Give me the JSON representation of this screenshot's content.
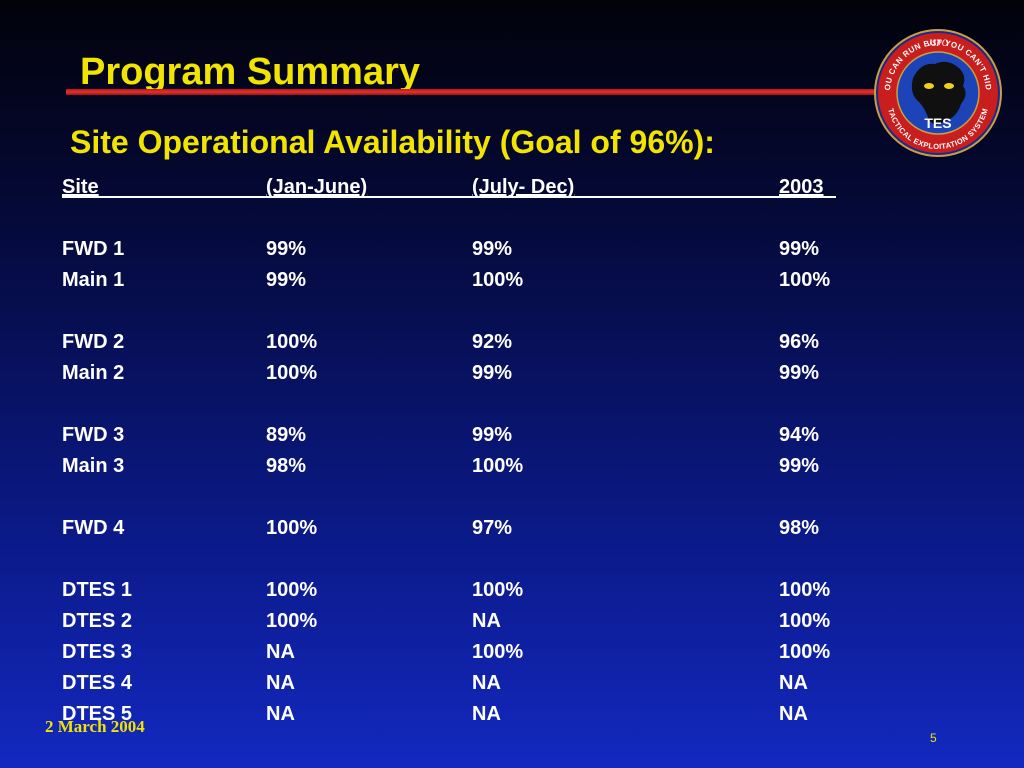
{
  "slide": {
    "title": "Program Summary",
    "subtitle": "Site Operational Availability (Goal of 96%):",
    "footer_date": "2 March 2004",
    "page_number": "5",
    "colors": {
      "title": "#f0e400",
      "accent_rule": "#e02020",
      "text": "#ffffff",
      "background_top": "#02020a",
      "background_bottom": "#1328c0"
    }
  },
  "logo": {
    "top_text": "JSPO",
    "ring_text": "YOU CAN RUN BUT YOU CAN'T HIDE",
    "bottom_ring_text": "TACTICAL EXPLOITATION SYSTEM",
    "center_text": "TES",
    "icon": "tes-emblem-icon"
  },
  "table": {
    "headers": [
      "Site",
      "(Jan-June)",
      "(July- Dec)",
      "2003"
    ],
    "groups": [
      [
        [
          "FWD 1",
          "99%",
          "99%",
          "99%"
        ],
        [
          "Main 1",
          "99%",
          "100%",
          "100%"
        ]
      ],
      [
        [
          "FWD 2",
          "100%",
          "92%",
          "96%"
        ],
        [
          "Main 2",
          "100%",
          "99%",
          "99%"
        ]
      ],
      [
        [
          "FWD 3",
          "89%",
          "99%",
          "94%"
        ],
        [
          "Main 3",
          "98%",
          "100%",
          "99%"
        ]
      ],
      [
        [
          "FWD 4",
          "100%",
          "97%",
          "98%"
        ]
      ],
      [
        [
          "DTES 1",
          "100%",
          "100%",
          "100%"
        ],
        [
          "DTES 2",
          "100%",
          "NA",
          "100%"
        ],
        [
          "DTES 3",
          "NA",
          "100%",
          "100%"
        ],
        [
          "DTES 4",
          "NA",
          "NA",
          "NA"
        ],
        [
          "DTES 5",
          "NA",
          "NA",
          "NA"
        ]
      ]
    ]
  }
}
